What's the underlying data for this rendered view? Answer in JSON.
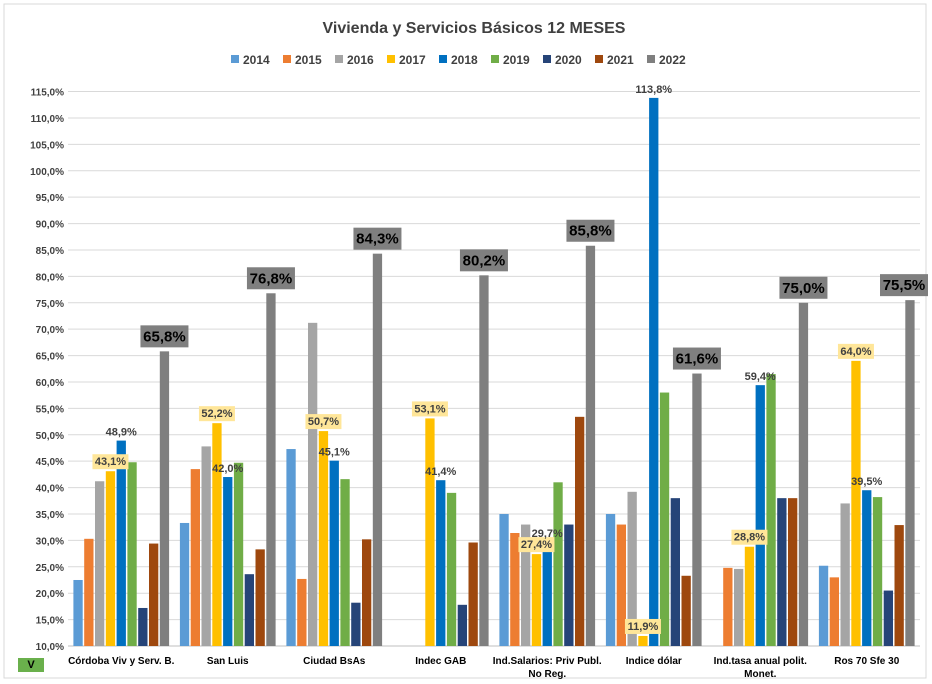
{
  "chart_data": {
    "type": "bar",
    "title": "Vivienda y Servicios Básicos 12 MESES",
    "xlabel": "",
    "ylabel": "",
    "ylim": [
      10,
      117
    ],
    "yticks": [
      "10,0%",
      "15,0%",
      "20,0%",
      "25,0%",
      "30,0%",
      "35,0%",
      "40,0%",
      "45,0%",
      "50,0%",
      "55,0%",
      "60,0%",
      "65,0%",
      "70,0%",
      "75,0%",
      "80,0%",
      "85,0%",
      "90,0%",
      "95,0%",
      "100,0%",
      "105,0%",
      "110,0%",
      "115,0%"
    ],
    "legend_position": "top",
    "categories": [
      "Córdoba Viv y Serv. B.",
      "San Luis",
      "Ciudad BsAs",
      "Indec GAB",
      "Ind.Salarios: Priv Publ.\nNo Reg.",
      "Indice dólar",
      "Ind.tasa anual polit.\nMonet.",
      "Ros 70 Sfe 30"
    ],
    "series": [
      {
        "name": "2014",
        "color": "#5b9bd5",
        "values": [
          22.5,
          33.3,
          47.3,
          null,
          35.0,
          35.0,
          null,
          25.2
        ]
      },
      {
        "name": "2015",
        "color": "#ed7d31",
        "values": [
          30.3,
          43.5,
          22.7,
          null,
          31.4,
          33.0,
          24.8,
          23.0
        ]
      },
      {
        "name": "2016",
        "color": "#a5a5a5",
        "values": [
          41.2,
          47.8,
          71.2,
          null,
          33.0,
          39.2,
          24.6,
          37.0
        ]
      },
      {
        "name": "2017",
        "color": "#ffc000",
        "values": [
          43.1,
          52.2,
          50.7,
          53.1,
          27.4,
          11.9,
          28.8,
          64.0
        ]
      },
      {
        "name": "2018",
        "color": "#0070c0",
        "values": [
          48.9,
          42.0,
          45.1,
          41.4,
          29.7,
          113.8,
          59.4,
          39.5
        ]
      },
      {
        "name": "2019",
        "color": "#70ad47",
        "values": [
          44.8,
          44.7,
          41.6,
          39.0,
          41.0,
          58.0,
          61.5,
          38.2
        ]
      },
      {
        "name": "2020",
        "color": "#264478",
        "values": [
          17.2,
          23.6,
          18.2,
          17.8,
          33.0,
          38.0,
          38.0,
          20.5
        ]
      },
      {
        "name": "2021",
        "color": "#9e480e",
        "values": [
          29.4,
          28.3,
          30.2,
          29.6,
          53.4,
          23.3,
          38.0,
          32.9
        ]
      },
      {
        "name": "2022",
        "color": "#7f7f7f",
        "values": [
          65.8,
          76.8,
          84.3,
          80.2,
          85.8,
          61.6,
          75.0,
          75.5
        ]
      }
    ],
    "data_labels": [
      {
        "category": 0,
        "series": 3,
        "text": "43,1%",
        "style": "yellow"
      },
      {
        "category": 0,
        "series": 4,
        "text": "48,9%",
        "style": "plain"
      },
      {
        "category": 0,
        "series": 8,
        "text": "65,8%",
        "style": "gray"
      },
      {
        "category": 1,
        "series": 3,
        "text": "52,2%",
        "style": "yellow"
      },
      {
        "category": 1,
        "series": 4,
        "text": "42,0%",
        "style": "plain"
      },
      {
        "category": 1,
        "series": 8,
        "text": "76,8%",
        "style": "gray"
      },
      {
        "category": 2,
        "series": 3,
        "text": "50,7%",
        "style": "yellow"
      },
      {
        "category": 2,
        "series": 4,
        "text": "45,1%",
        "style": "plain"
      },
      {
        "category": 2,
        "series": 8,
        "text": "84,3%",
        "style": "gray"
      },
      {
        "category": 3,
        "series": 3,
        "text": "53,1%",
        "style": "yellow"
      },
      {
        "category": 3,
        "series": 4,
        "text": "41,4%",
        "style": "plain"
      },
      {
        "category": 3,
        "series": 8,
        "text": "80,2%",
        "style": "gray"
      },
      {
        "category": 4,
        "series": 3,
        "text": "27,4%",
        "style": "yellow"
      },
      {
        "category": 4,
        "series": 4,
        "text": "29,7%",
        "style": "plain"
      },
      {
        "category": 4,
        "series": 8,
        "text": "85,8%",
        "style": "gray"
      },
      {
        "category": 5,
        "series": 3,
        "text": "11,9%",
        "style": "yellow"
      },
      {
        "category": 5,
        "series": 4,
        "text": "113,8%",
        "style": "plain"
      },
      {
        "category": 5,
        "series": 8,
        "text": "61,6%",
        "style": "gray"
      },
      {
        "category": 6,
        "series": 3,
        "text": "28,8%",
        "style": "yellow"
      },
      {
        "category": 6,
        "series": 4,
        "text": "59,4%",
        "style": "plain"
      },
      {
        "category": 6,
        "series": 8,
        "text": "75,0%",
        "style": "gray"
      },
      {
        "category": 7,
        "series": 3,
        "text": "64,0%",
        "style": "yellow"
      },
      {
        "category": 7,
        "series": 4,
        "text": "39,5%",
        "style": "plain"
      },
      {
        "category": 7,
        "series": 8,
        "text": "75,5%",
        "style": "gray"
      }
    ],
    "grid": true
  },
  "sheet_cell": "V"
}
